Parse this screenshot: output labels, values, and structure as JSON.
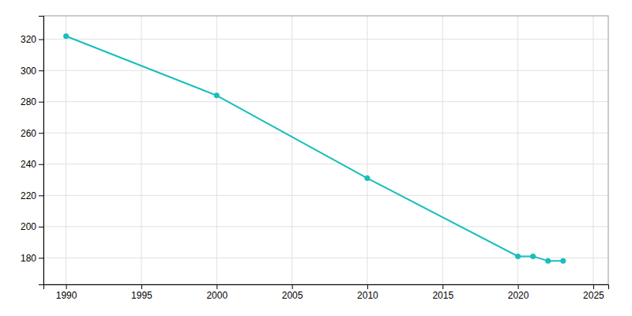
{
  "chart_data": {
    "type": "line",
    "x": [
      1990,
      2000,
      2010,
      2020,
      2021,
      2022,
      2023
    ],
    "values": [
      322,
      284,
      231,
      181,
      181,
      178,
      178
    ],
    "color": "#17bebb",
    "marker": "circle",
    "line_style": "solid",
    "xlim": [
      1988.5,
      2026
    ],
    "ylim": [
      163,
      335
    ],
    "xticks": [
      1990,
      1995,
      2000,
      2005,
      2010,
      2015,
      2020,
      2025
    ],
    "yticks": [
      180,
      200,
      220,
      240,
      260,
      280,
      300,
      320
    ],
    "grid": true
  }
}
